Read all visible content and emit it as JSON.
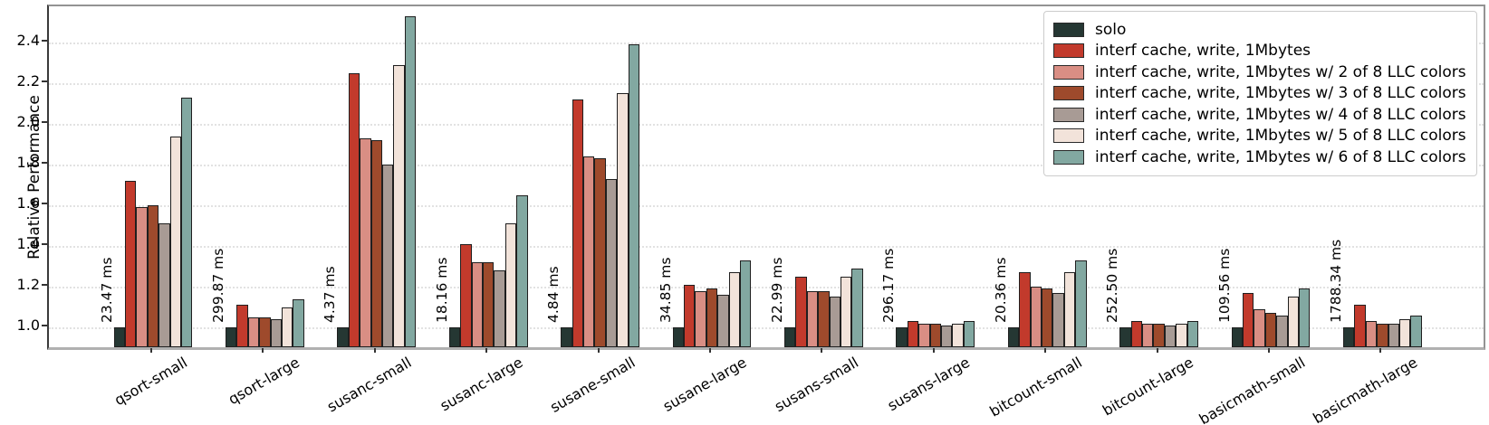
{
  "chart_data": {
    "type": "bar",
    "title": "",
    "xlabel": "",
    "ylabel": "Relative Performance",
    "ylim": [
      0.9,
      2.57
    ],
    "yticks": [
      "1.0",
      "1.2",
      "1.4",
      "1.6",
      "1.8",
      "2.0",
      "2.2",
      "2.4"
    ],
    "grid": "horizontal-dotted",
    "legend_position": "upper right",
    "bar_edge_color": "#1f1f1f",
    "categories": [
      "qsort-small",
      "qsort-large",
      "susanc-small",
      "susanc-large",
      "susane-small",
      "susane-large",
      "susans-small",
      "susans-large",
      "bitcount-small",
      "bitcount-large",
      "basicmath-small",
      "basicmath-large"
    ],
    "bar_annotations": [
      "23.47 ms",
      "299.87 ms",
      "4.37 ms",
      "18.16 ms",
      "4.84 ms",
      "34.85 ms",
      "22.99 ms",
      "296.17 ms",
      "20.36 ms",
      "252.50 ms",
      "109.56 ms",
      "1788.34 ms"
    ],
    "series": [
      {
        "name": "solo",
        "color": "#253733",
        "values": [
          1.0,
          1.0,
          1.0,
          1.0,
          1.0,
          1.0,
          1.0,
          1.0,
          1.0,
          1.0,
          1.0,
          1.0
        ]
      },
      {
        "name": "interf cache, write, 1Mbytes",
        "color": "#c23a2c",
        "values": [
          1.72,
          1.11,
          2.25,
          1.41,
          2.12,
          1.21,
          1.25,
          1.03,
          1.27,
          1.03,
          1.17,
          1.11
        ]
      },
      {
        "name": "interf cache, write, 1Mbytes w/ 2 of 8 LLC colors",
        "color": "#d98e84",
        "values": [
          1.59,
          1.05,
          1.93,
          1.32,
          1.84,
          1.18,
          1.18,
          1.02,
          1.2,
          1.02,
          1.09,
          1.03
        ]
      },
      {
        "name": "interf cache, write, 1Mbytes w/ 3 of 8 LLC colors",
        "color": "#9e4a2c",
        "values": [
          1.6,
          1.05,
          1.92,
          1.32,
          1.83,
          1.19,
          1.18,
          1.02,
          1.19,
          1.02,
          1.07,
          1.02
        ]
      },
      {
        "name": "interf cache, write, 1Mbytes w/ 4 of 8 LLC colors",
        "color": "#a89b95",
        "values": [
          1.51,
          1.04,
          1.8,
          1.28,
          1.73,
          1.16,
          1.15,
          1.01,
          1.17,
          1.01,
          1.06,
          1.02
        ]
      },
      {
        "name": "interf cache, write, 1Mbytes w/ 5 of 8 LLC colors",
        "color": "#f2e3da",
        "values": [
          1.94,
          1.1,
          2.29,
          1.51,
          2.15,
          1.27,
          1.25,
          1.02,
          1.27,
          1.02,
          1.15,
          1.04
        ]
      },
      {
        "name": "interf cache, write, 1Mbytes w/ 6 of 8 LLC colors",
        "color": "#82a8a1",
        "values": [
          2.13,
          1.14,
          2.53,
          1.65,
          2.39,
          1.33,
          1.29,
          1.03,
          1.33,
          1.03,
          1.19,
          1.06
        ]
      }
    ]
  }
}
